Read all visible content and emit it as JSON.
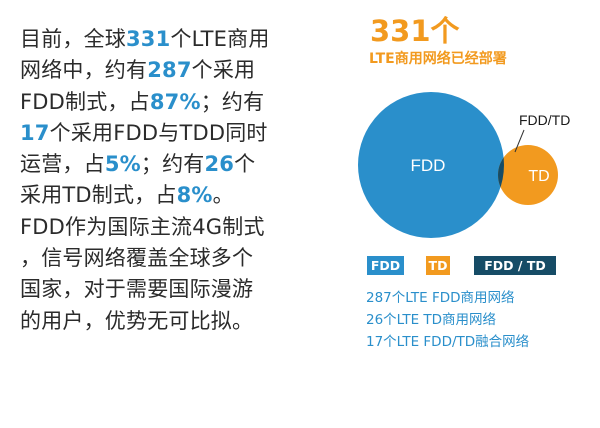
{
  "paragraph": {
    "lines": [
      [
        {
          "t": "目前，全球"
        },
        {
          "t": "331",
          "hl": true
        },
        {
          "t": "个LTE商用"
        }
      ],
      [
        {
          "t": "网络中，约有"
        },
        {
          "t": "287",
          "hl": true
        },
        {
          "t": "个采用"
        }
      ],
      [
        {
          "t": "FDD制式，占"
        },
        {
          "t": "87%",
          "hl": true
        },
        {
          "t": "；约有"
        }
      ],
      [
        {
          "t": "17",
          "hl": true
        },
        {
          "t": "个采用FDD与TDD同时"
        }
      ],
      [
        {
          "t": "运营，占"
        },
        {
          "t": "5%",
          "hl": true
        },
        {
          "t": "；约有"
        },
        {
          "t": "26",
          "hl": true
        },
        {
          "t": "个"
        }
      ],
      [
        {
          "t": "采用TD制式，占"
        },
        {
          "t": "8%",
          "hl": true
        },
        {
          "t": "。"
        }
      ],
      [
        {
          "t": "FDD作为国际主流4G制式"
        }
      ],
      [
        {
          "t": "，信号网络覆盖全球多个"
        }
      ],
      [
        {
          "t": "国家，对于需要国际漫游"
        }
      ],
      [
        {
          "t": "的用户，优势无可比拟。"
        }
      ]
    ]
  },
  "infographic": {
    "headline": "331个",
    "subhead": "LTE商用网络已经部署",
    "venn": {
      "fdd_label": "FDD",
      "td_label": "TD",
      "overlap_label": "FDD/TD"
    },
    "legend": {
      "fdd": "FDD",
      "td": "TD",
      "both": "FDD / TD"
    },
    "notes": [
      "287个LTE FDD商用网络",
      "26个LTE TD商用网络",
      "17个LTE FDD/TD融合网络"
    ],
    "colors": {
      "fdd": "#2a8fcb",
      "td": "#f29a1f",
      "overlap": "#164c66"
    }
  }
}
